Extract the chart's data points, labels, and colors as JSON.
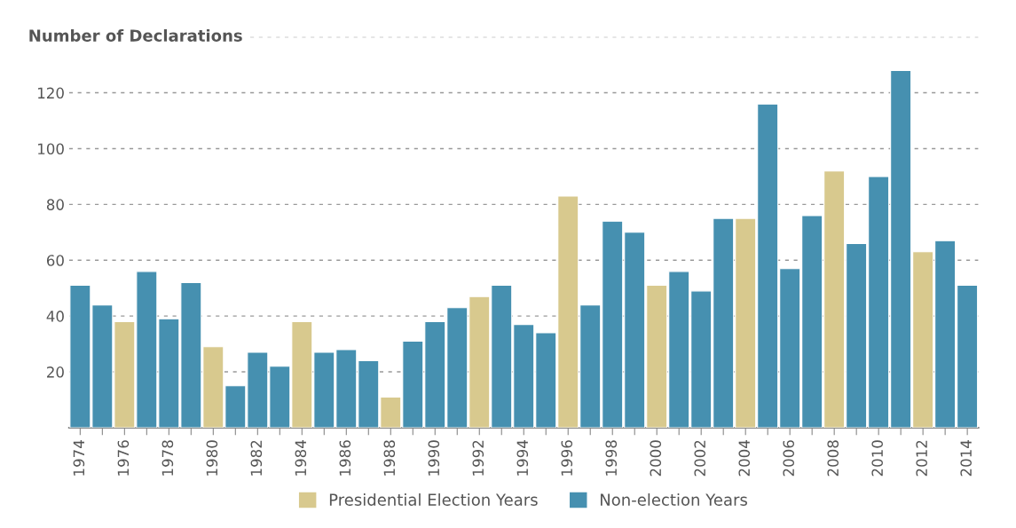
{
  "chart_data": {
    "type": "bar",
    "title": "Number of Declarations",
    "categories": [
      "1974",
      null,
      "1976",
      null,
      "1978",
      null,
      "1980",
      null,
      "1982",
      null,
      "1984",
      null,
      "1986",
      null,
      "1988",
      null,
      "1990",
      null,
      "1992",
      null,
      "1994",
      null,
      "1996",
      null,
      "1998",
      null,
      "2000",
      null,
      "2002",
      null,
      "2004",
      null,
      "2006",
      null,
      "2008",
      null,
      "2010",
      null,
      "2012",
      null,
      "2014"
    ],
    "series": [
      {
        "name": "Presidential Election Years",
        "color": "#d8c98e",
        "values": [
          null,
          null,
          38,
          null,
          null,
          null,
          29,
          null,
          null,
          null,
          38,
          null,
          null,
          null,
          11,
          null,
          null,
          null,
          47,
          null,
          null,
          null,
          83,
          null,
          null,
          null,
          51,
          null,
          null,
          null,
          75,
          null,
          null,
          null,
          92,
          null,
          null,
          null,
          63,
          null,
          null
        ]
      },
      {
        "name": "Non-election Years",
        "color": "#4690b0",
        "values": [
          51,
          44,
          null,
          56,
          39,
          52,
          null,
          15,
          27,
          22,
          null,
          27,
          28,
          24,
          null,
          31,
          38,
          43,
          null,
          51,
          37,
          34,
          null,
          44,
          74,
          70,
          null,
          56,
          49,
          75,
          null,
          116,
          57,
          76,
          null,
          66,
          90,
          128,
          null,
          67,
          51
        ]
      }
    ],
    "ylim": [
      0,
      140
    ],
    "yticks": [
      20,
      40,
      60,
      80,
      100,
      120,
      {
        "value": 140,
        "label": null
      }
    ],
    "grid": "y",
    "legend": "bottom"
  }
}
